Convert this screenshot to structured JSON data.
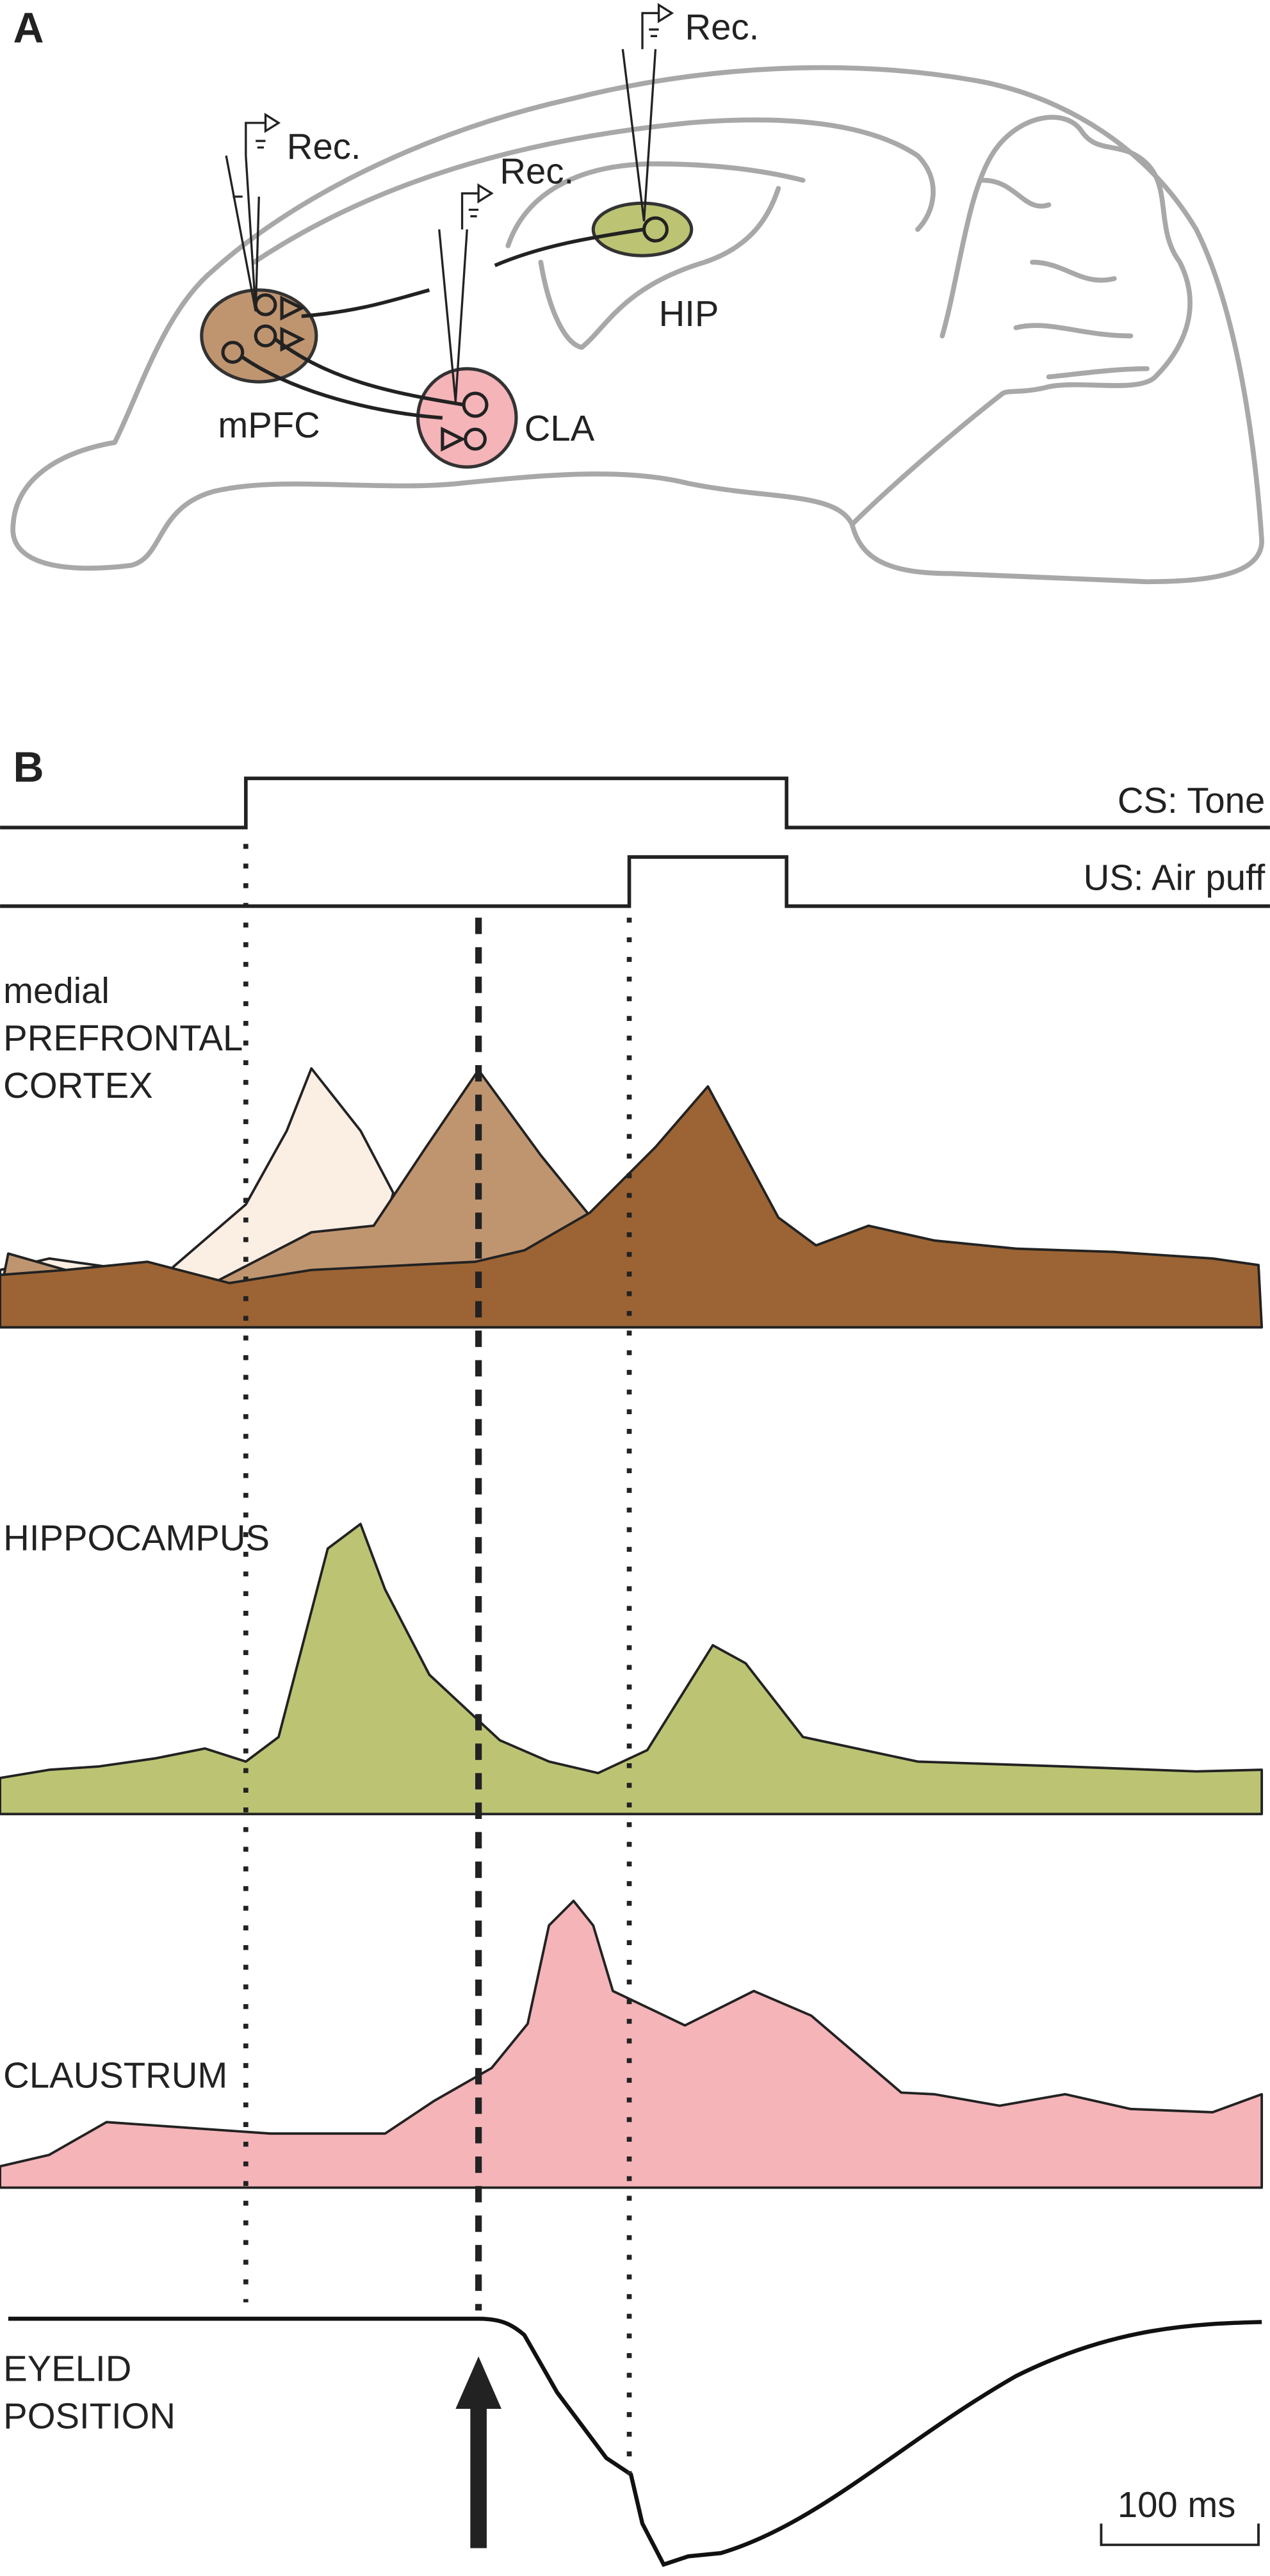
{
  "panel_a": {
    "label": "A",
    "recordings": [
      "Rec.",
      "Rec.",
      "Rec."
    ],
    "regions": [
      "mPFC",
      "CLA",
      "HIP"
    ]
  },
  "panel_b": {
    "label": "B",
    "stimuli": [
      "CS: Tone",
      "US: Air puff"
    ],
    "traces": [
      [
        "medial",
        "PREFRONTAL",
        "CORTEX"
      ],
      [
        "HIPPOCAMPUS"
      ],
      [
        "CLAUSTRUM"
      ],
      [
        "EYELID",
        "POSITION"
      ]
    ],
    "scale_bar": "100 ms"
  }
}
